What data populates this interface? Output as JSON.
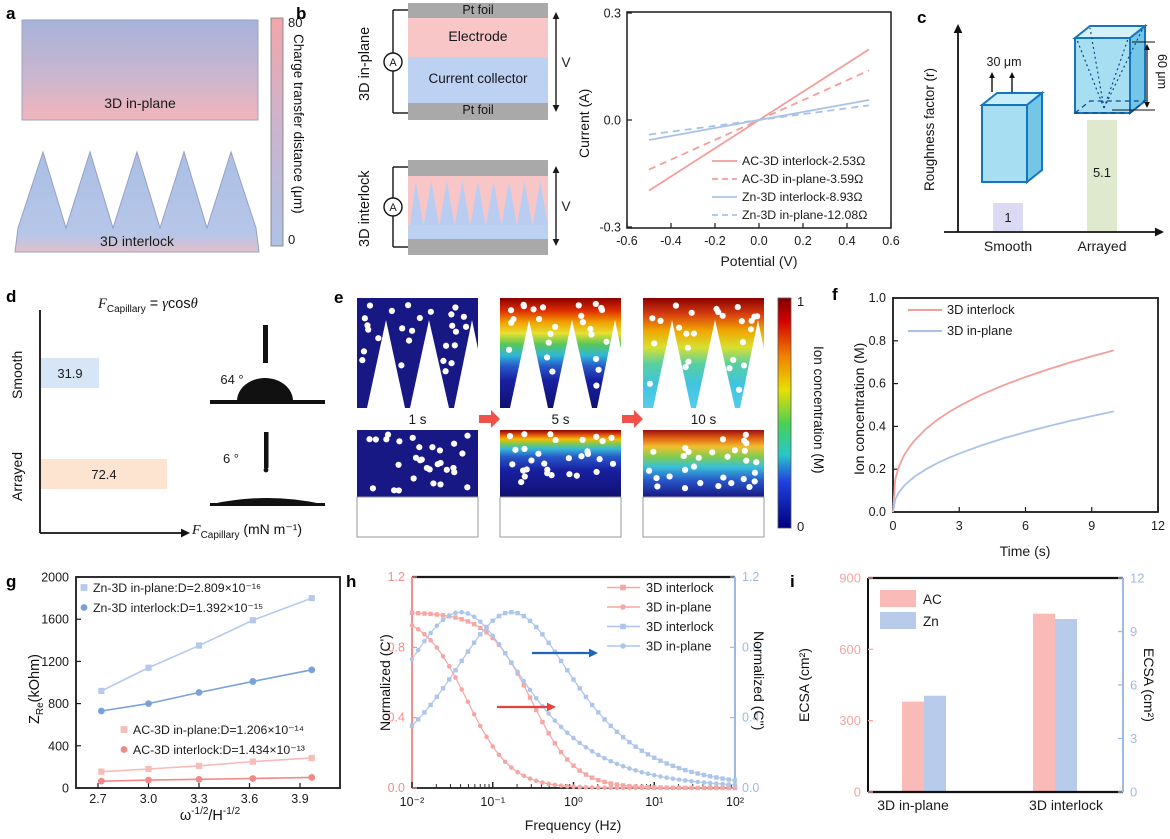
{
  "colors": {
    "pink_line": "#f49e9b",
    "blue_line": "#a9c3e8",
    "pink_bar": "#f9bab8",
    "blue_bar": "#b9cbea",
    "red_arrow": "#e8403a",
    "blue_arrow": "#1b66c0",
    "block_arrow": "#f4504a",
    "electrode_pink": "#f9c6c8",
    "collector_blue": "#bdd1f3",
    "pt_gray": "#a9a9a9",
    "cuboid_cyan": "#a8def2",
    "cuboid_edge": "#1576be"
  },
  "panels": {
    "a": {
      "letter": "a",
      "inplane": "3D in-plane",
      "interlock": "3D interlock",
      "cbar_max": "80",
      "cbar_min": "0",
      "cbar_label": "Charge transfer distance (μm)"
    },
    "b": {
      "letter": "b",
      "inplane": "3D in-plane",
      "interlock": "3D interlock",
      "pt_top": "Pt foil",
      "electrode": "Electrode",
      "collector": "Current collector",
      "pt_bottom": "Pt foil",
      "ammeter": "A",
      "voltmeter": "V"
    },
    "c": {
      "letter": "c"
    },
    "d": {
      "letter": "d",
      "eq_F": "F",
      "eq_sub": "Capillary",
      "eq_eq": "= ",
      "eq_gamma": "γ",
      "eq_cos": "cos",
      "eq_theta": "θ",
      "xl_F": "F",
      "xl_sub": "Capillary",
      "xl_rest": " (mN m⁻¹)"
    },
    "e": {
      "letter": "e"
    },
    "f": {
      "letter": "f"
    },
    "g": {
      "letter": "g",
      "ylabel_main": "Z",
      "ylabel_sub": "Re",
      "ylabel_rest": "(kOhm)",
      "xl_w": "ω",
      "xl_e1": "-1/2",
      "xl_mid": "/H",
      "xl_e2": "-1/2"
    },
    "h": {
      "letter": "h"
    },
    "i": {
      "letter": "i"
    }
  },
  "chart_data": [
    {
      "id": "b_iv",
      "type": "line",
      "xlabel": "Potential (V)",
      "ylabel": "Current (A)",
      "xlim": [
        -0.6,
        0.6
      ],
      "ylim": [
        -0.3,
        0.3
      ],
      "xtick_labels": [
        "-0.6",
        "-0.4",
        "-0.2",
        "0.0",
        "0.2",
        "0.4",
        "0.6"
      ],
      "ytick_labels": [
        "0.3",
        "0.0",
        "-0.3"
      ],
      "legend_position": "bottom-right",
      "series": [
        {
          "name": "AC-3D interlock-2.53Ω",
          "resistance_ohm": 2.53,
          "style": "solid",
          "color": "#f49e9b",
          "x": [
            -0.5,
            0.5
          ],
          "y": [
            -0.198,
            0.198
          ]
        },
        {
          "name": "AC-3D in-plane-3.59Ω",
          "resistance_ohm": 3.59,
          "style": "dashed",
          "color": "#f49e9b",
          "x": [
            -0.5,
            0.5
          ],
          "y": [
            -0.139,
            0.139
          ]
        },
        {
          "name": "Zn-3D interlock-8.93Ω",
          "resistance_ohm": 8.93,
          "style": "solid",
          "color": "#a9c3e8",
          "x": [
            -0.5,
            0.5
          ],
          "y": [
            -0.056,
            0.056
          ]
        },
        {
          "name": "Zn-3D in-plane-12.08Ω",
          "resistance_ohm": 12.08,
          "style": "dashed",
          "color": "#a9c3e8",
          "x": [
            -0.5,
            0.5
          ],
          "y": [
            -0.041,
            0.041
          ]
        }
      ]
    },
    {
      "id": "c_roughness",
      "type": "bar",
      "ylabel": "Roughness factor (r)",
      "categories": [
        "Smooth",
        "Arrayed"
      ],
      "values": [
        1,
        5.1
      ],
      "value_labels": [
        "1",
        "5.1"
      ],
      "bar_colors": [
        "#dcdaf2",
        "#dfe9ce"
      ],
      "annotations": [
        "30 μm",
        "60 μm"
      ]
    },
    {
      "id": "d_capillary",
      "type": "bar",
      "orientation": "horizontal",
      "title": "F_Capillary = γcosθ",
      "xlabel": "F_Capillary (mN m⁻¹)",
      "categories": [
        "Smooth",
        "Arrayed"
      ],
      "values": [
        31.9,
        72.4
      ],
      "value_labels": [
        "31.9",
        "72.4"
      ],
      "bar_colors": [
        "#d6e6f6",
        "#fce4d1"
      ],
      "contact_angles": [
        "64 °",
        "6 °"
      ]
    },
    {
      "id": "e_simulation",
      "type": "heatmap",
      "rows": [
        "3D interlock",
        "3D in-plane"
      ],
      "times": [
        "1 s",
        "5 s",
        "10 s"
      ],
      "colorbar_label": "Ion concentration (M)",
      "colorbar_max": "1",
      "colorbar_min": "0"
    },
    {
      "id": "f_ion",
      "type": "line",
      "xlabel": "Time (s)",
      "ylabel": "Ion concentration (M)",
      "xlim": [
        0,
        12
      ],
      "ylim": [
        0,
        1
      ],
      "xtick_labels": [
        "0",
        "3",
        "6",
        "9",
        "12"
      ],
      "ytick_labels": [
        "0.0",
        "0.2",
        "0.4",
        "0.6",
        "0.8",
        "1.0"
      ],
      "t": [
        0,
        0.1,
        0.25,
        0.5,
        0.75,
        1,
        1.5,
        2,
        2.5,
        3,
        4,
        5,
        6,
        7,
        8,
        9,
        10
      ],
      "series": [
        {
          "name": "3D interlock",
          "color": "#f49e9b",
          "y": [
            0,
            0.151,
            0.208,
            0.265,
            0.305,
            0.337,
            0.389,
            0.43,
            0.465,
            0.495,
            0.548,
            0.592,
            0.631,
            0.666,
            0.698,
            0.728,
            0.755
          ]
        },
        {
          "name": "3D in-plane",
          "color": "#a9c3e8",
          "y": [
            0,
            0.059,
            0.089,
            0.122,
            0.146,
            0.167,
            0.2,
            0.228,
            0.252,
            0.273,
            0.311,
            0.344,
            0.373,
            0.4,
            0.425,
            0.448,
            0.47
          ]
        }
      ]
    },
    {
      "id": "g_warburg",
      "type": "scatter-line",
      "xlabel": "ω⁻¹/²/H⁻¹/²",
      "ylabel": "Z_Re(kOhm)",
      "xlim": [
        2.55,
        4.2
      ],
      "ylim": [
        0,
        2000
      ],
      "xticks": [
        2.7,
        3.0,
        3.3,
        3.6,
        3.9
      ],
      "xtick_labels": [
        "2.7",
        "3.0",
        "3.3",
        "3.6",
        "3.9"
      ],
      "ytick_labels": [
        "0",
        "400",
        "800",
        "1200",
        "1600",
        "2000"
      ],
      "x": [
        2.72,
        3.0,
        3.3,
        3.62,
        3.97
      ],
      "series": [
        {
          "name": "Zn-3D in-plane:D=2.809×10⁻¹⁶",
          "marker": "square",
          "color": "#b4c9ec",
          "y": [
            920,
            1140,
            1350,
            1590,
            1800
          ]
        },
        {
          "name": "Zn-3D interlock:D=1.392×10⁻¹⁵",
          "marker": "circle",
          "color": "#7aa2d8",
          "y": [
            730,
            800,
            905,
            1010,
            1120
          ]
        },
        {
          "name": "AC-3D in-plane:D=1.206×10⁻¹⁴",
          "marker": "square",
          "color": "#f8bbb8",
          "y": [
            155,
            180,
            210,
            250,
            285
          ]
        },
        {
          "name": "AC-3D interlock:D=1.434×10⁻¹³",
          "marker": "circle",
          "color": "#f08a86",
          "y": [
            65,
            75,
            82,
            90,
            100
          ]
        }
      ]
    },
    {
      "id": "h_freq",
      "type": "line",
      "xscale": "log",
      "xlabel": "Frequency (Hz)",
      "ylabel_left": "Normalized (C')",
      "ylabel_right": "Normalized (C'')",
      "xlim": [
        0.01,
        100
      ],
      "ylim": [
        0,
        1.2
      ],
      "xtick_labels": [
        "10⁻²",
        "10⁻¹",
        "10⁰",
        "10¹",
        "10²"
      ],
      "ytick_labels": [
        "0.0",
        "0.4",
        "0.8",
        "1.2"
      ],
      "series": [
        {
          "name": "3D interlock",
          "curve": "C_real",
          "marker": "square",
          "color": "#f5a7a4",
          "half_drop_hz": 0.3,
          "exponent": 1.6
        },
        {
          "name": "3D in-plane",
          "curve": "C_real",
          "marker": "circle",
          "color": "#f5a7a4",
          "half_drop_hz": 0.048,
          "exponent": 1.6
        },
        {
          "name": "3D interlock",
          "curve": "C_imag",
          "marker": "square",
          "color": "#aec5ea",
          "peak_hz": 0.17,
          "exponent": 0.6
        },
        {
          "name": "3D in-plane",
          "curve": "C_imag",
          "marker": "circle",
          "color": "#aec5ea",
          "peak_hz": 0.04,
          "exponent": 0.6
        }
      ]
    },
    {
      "id": "i_ecsa",
      "type": "bar",
      "categories": [
        "3D in-plane",
        "3D interlock"
      ],
      "ylabel_left": "ECSA (cm²)",
      "ylabel_right": "ECSA (cm²)",
      "ylim_left": [
        0,
        900
      ],
      "ylim_right": [
        0,
        12
      ],
      "ytick_labels_left": [
        "0",
        "300",
        "600",
        "900"
      ],
      "ytick_labels_right": [
        "0",
        "3",
        "6",
        "9",
        "12"
      ],
      "series": [
        {
          "name": "AC",
          "axis": "left",
          "color": "#f9bab8",
          "values": [
            380,
            750
          ]
        },
        {
          "name": "Zn",
          "axis": "right",
          "color": "#b9cbea",
          "values": [
            5.4,
            9.7
          ]
        }
      ]
    }
  ]
}
